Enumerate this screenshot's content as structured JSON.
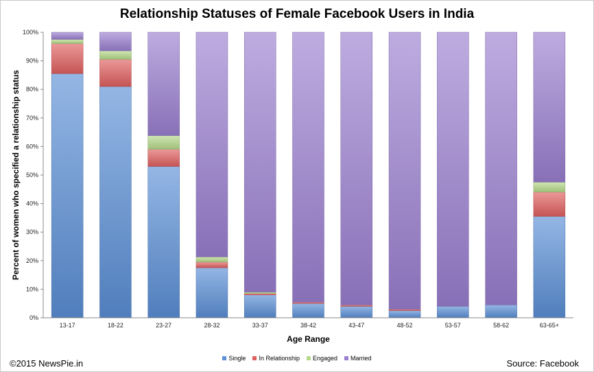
{
  "footer": {
    "copyright": "©2015 NewsPie.in",
    "source": "Source: Facebook"
  },
  "chart_data": {
    "type": "bar",
    "stacked": true,
    "percent": true,
    "title": "Relationship Statuses of Female Facebook Users in India",
    "xlabel": "Age Range",
    "ylabel": "Percent of women who specified a relationship status",
    "ylim": [
      0,
      100
    ],
    "yticks": [
      "0%",
      "10%",
      "20%",
      "30%",
      "40%",
      "50%",
      "60%",
      "70%",
      "80%",
      "90%",
      "100%"
    ],
    "grid": false,
    "legend_position": "bottom",
    "categories": [
      "13-17",
      "18-22",
      "23-27",
      "28-32",
      "33-37",
      "38-42",
      "43-47",
      "48-52",
      "53-57",
      "58-62",
      "63-65+"
    ],
    "series": [
      {
        "name": "Single",
        "color": "#5b8fd6",
        "values": [
          85.5,
          81,
          53,
          17.5,
          8,
          5,
          4,
          2.5,
          4,
          4.5,
          35.5
        ]
      },
      {
        "name": "In Relationship",
        "color": "#e06060",
        "values": [
          10.5,
          9.5,
          6,
          2,
          0.5,
          0.5,
          0.5,
          0.5,
          0,
          0,
          8.5
        ]
      },
      {
        "name": "Engaged",
        "color": "#b5d98a",
        "values": [
          1.5,
          3,
          4.8,
          1.8,
          0.5,
          0,
          0,
          0,
          0,
          0,
          3.5
        ]
      },
      {
        "name": "Married",
        "color": "#9b7fd0",
        "values": [
          2.5,
          6.5,
          36.2,
          78.7,
          91,
          94.5,
          95.5,
          97,
          96,
          95.5,
          52.5
        ]
      }
    ]
  }
}
